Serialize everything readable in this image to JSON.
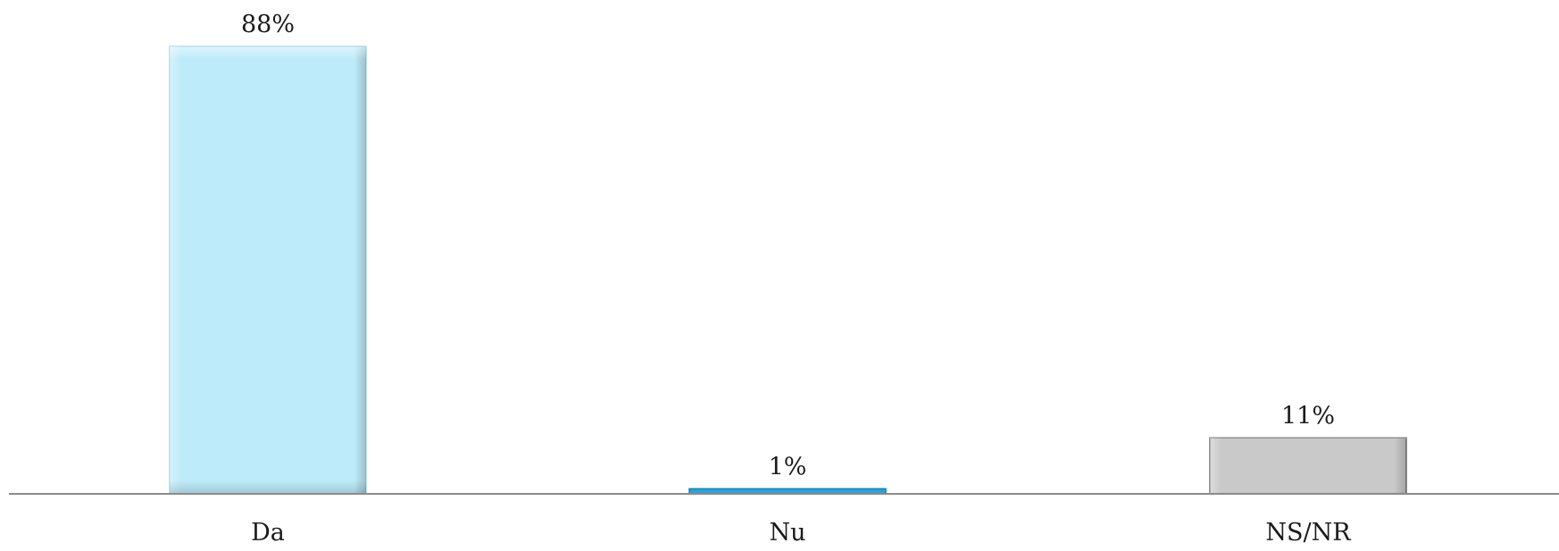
{
  "chart_data": {
    "type": "bar",
    "title": "",
    "xlabel": "",
    "ylabel": "",
    "categories": [
      "Da",
      "Nu",
      "NS/NR"
    ],
    "values": [
      88,
      1,
      11
    ],
    "data_labels": [
      "88%",
      "1%",
      "11%"
    ],
    "value_unit": "%",
    "ylim": [
      0,
      88
    ],
    "grid": false,
    "legend": "none",
    "colors": [
      "#BEEBFA",
      "#2CA4D8",
      "#C9C9C9"
    ],
    "edge_colors": [
      "#A8D6E6",
      "#1A7FB0",
      "#6E6E6E"
    ]
  }
}
